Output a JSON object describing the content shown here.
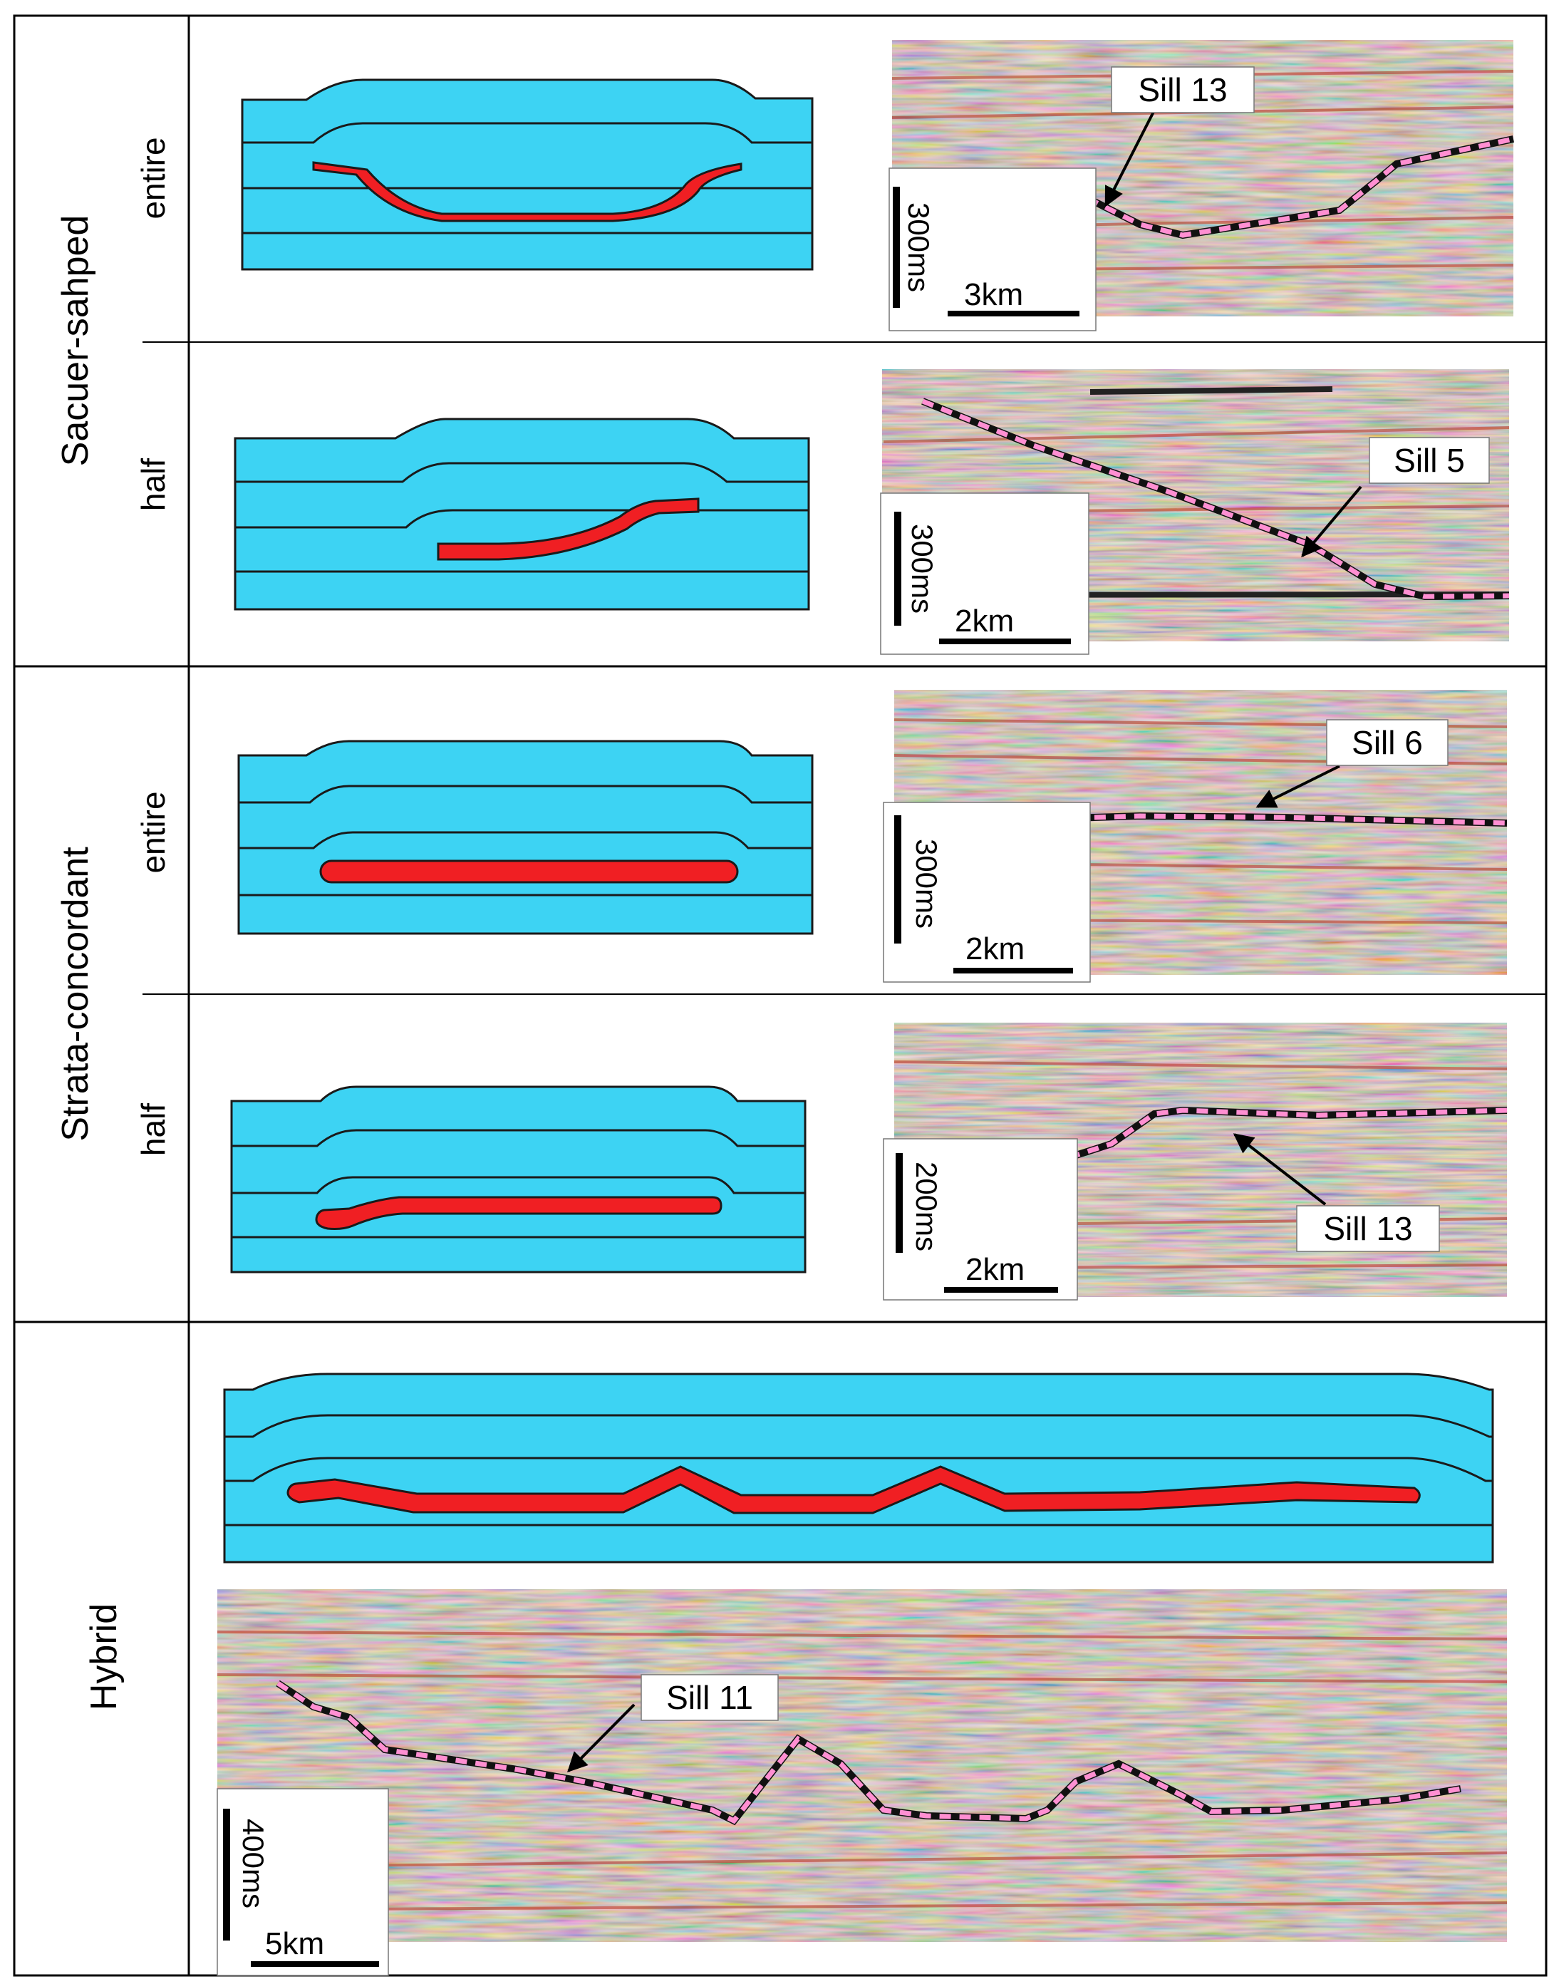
{
  "categories": {
    "saucer": "Sacuer-sahped",
    "strata": "Strata-concordant",
    "hybrid": "Hybrid"
  },
  "subtypes": {
    "saucer_entire": "entire",
    "saucer_half": "half",
    "strata_entire": "entire",
    "strata_half": "half"
  },
  "panels": {
    "p1": {
      "sill_label": "Sill 13",
      "time_scale": "300ms",
      "distance_scale": "3km"
    },
    "p2": {
      "sill_label": "Sill 5",
      "time_scale": "300ms",
      "distance_scale": "2km"
    },
    "p3": {
      "sill_label": "Sill 6",
      "time_scale": "300ms",
      "distance_scale": "2km"
    },
    "p4": {
      "sill_label": "Sill 13",
      "time_scale": "200ms",
      "distance_scale": "2km"
    },
    "p5": {
      "sill_label": "Sill 11",
      "time_scale": "400ms",
      "distance_scale": "5km"
    }
  },
  "colors": {
    "strata": "#3dd3f3",
    "sill": "#f01f23",
    "sill_trace": "#ff8fd2",
    "seismic_base": "#ddd3c2"
  }
}
